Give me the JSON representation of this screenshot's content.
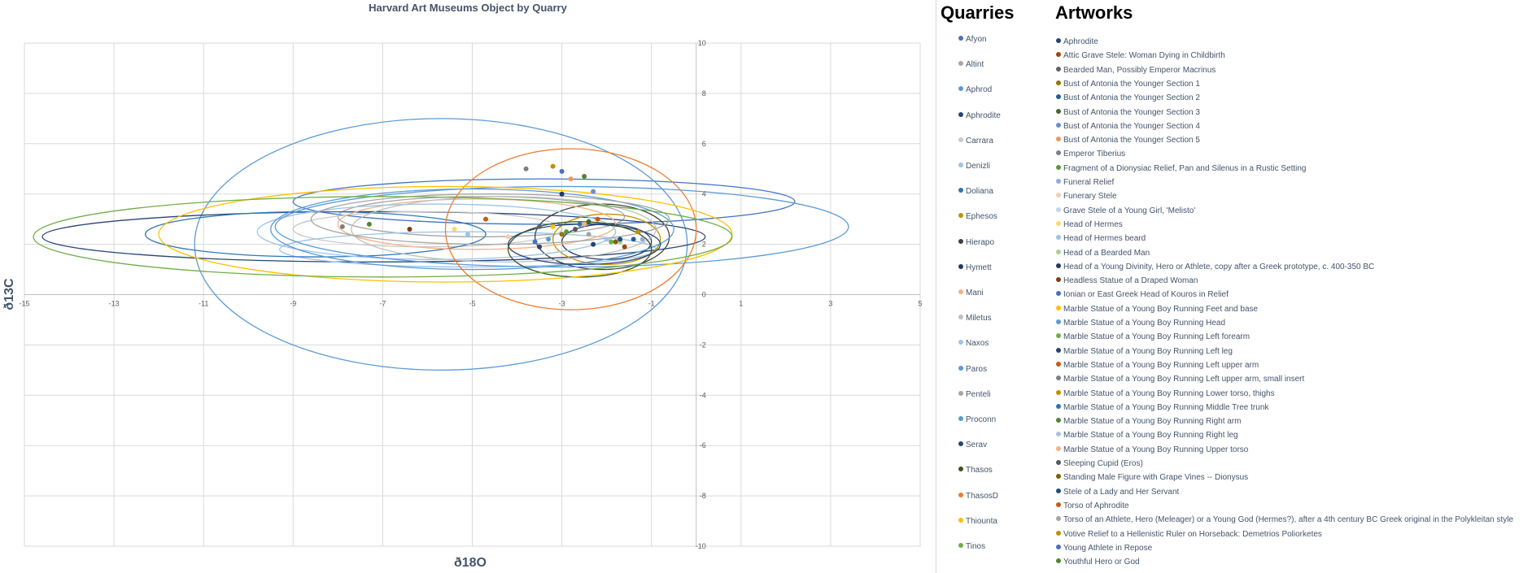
{
  "chart_data": {
    "type": "scatter",
    "title": "Harvard Art Museums Object by Quarry",
    "xlabel": "ð18O",
    "ylabel": "ð13C",
    "xlim": [
      -15,
      5
    ],
    "ylim": [
      -10,
      10
    ],
    "x_ticks": [
      -15,
      -13,
      -11,
      -9,
      -7,
      -5,
      -3,
      -1,
      1,
      3,
      5
    ],
    "y_ticks": [
      -10,
      -8,
      -6,
      -4,
      -2,
      0,
      2,
      4,
      6,
      8,
      10
    ],
    "grid": true,
    "quarries_heading": "Quarries",
    "artworks_heading": "Artworks",
    "quarries": [
      {
        "name": "Afyon",
        "color": "#4472c4",
        "ellipse": {
          "cx": -3.4,
          "cy": 3.7,
          "rx": 5.6,
          "ry": 0.9
        }
      },
      {
        "name": "Altint",
        "color": "#a5a5a5",
        "ellipse": {
          "cx": -4.8,
          "cy": 3.1,
          "rx": 3.2,
          "ry": 0.8
        }
      },
      {
        "name": "Aphrod",
        "color": "#5b9bd5",
        "ellipse": {
          "cx": -5.7,
          "cy": 2.0,
          "rx": 5.5,
          "ry": 5.0
        }
      },
      {
        "name": "Aphrodite",
        "color": "#264478",
        "ellipse": {
          "cx": -7.2,
          "cy": 2.3,
          "rx": 7.4,
          "ry": 1.0
        }
      },
      {
        "name": "Carrara",
        "color": "#c9c9c9",
        "ellipse": {
          "cx": -6.0,
          "cy": 2.6,
          "rx": 3.0,
          "ry": 0.7
        }
      },
      {
        "name": "Denizli",
        "color": "#9dc3e6",
        "ellipse": {
          "cx": -5.1,
          "cy": 1.8,
          "rx": 4.2,
          "ry": 0.7
        }
      },
      {
        "name": "Doliana",
        "color": "#2e75b6",
        "ellipse": {
          "cx": -8.5,
          "cy": 2.4,
          "rx": 3.8,
          "ry": 0.9
        }
      },
      {
        "name": "Ephesos",
        "color": "#bf9000",
        "ellipse": {
          "cx": -2.0,
          "cy": 2.2,
          "rx": 1.2,
          "ry": 1.0
        }
      },
      {
        "name": "Hierapo",
        "color": "#404040",
        "ellipse": {
          "cx": -2.1,
          "cy": 2.3,
          "rx": 1.5,
          "ry": 1.3
        }
      },
      {
        "name": "Hymett",
        "color": "#1f3864",
        "ellipse": {
          "cx": -2.0,
          "cy": 2.1,
          "rx": 1.0,
          "ry": 0.7
        }
      },
      {
        "name": "Mani",
        "color": "#f4b183",
        "ellipse": {
          "cx": -4.9,
          "cy": 2.8,
          "rx": 3.1,
          "ry": 1.0
        }
      },
      {
        "name": "Miletus",
        "color": "#bfbfbf",
        "ellipse": {
          "cx": -4.3,
          "cy": 2.6,
          "rx": 3.4,
          "ry": 1.3
        }
      },
      {
        "name": "Naxos",
        "color": "#9dc3e6",
        "ellipse": {
          "cx": -5.8,
          "cy": 2.5,
          "rx": 4.0,
          "ry": 1.1
        }
      },
      {
        "name": "Paros",
        "color": "#5b9bd5",
        "ellipse": {
          "cx": -5.0,
          "cy": 2.6,
          "rx": 4.5,
          "ry": 1.6
        }
      },
      {
        "name": "Penteli",
        "color": "#a5a5a5",
        "ellipse": {
          "cx": -4.6,
          "cy": 3.0,
          "rx": 4.0,
          "ry": 1.0
        }
      },
      {
        "name": "Proconn",
        "color": "#5b9bd5",
        "ellipse": {
          "cx": -3.0,
          "cy": 2.7,
          "rx": 6.4,
          "ry": 1.6
        }
      },
      {
        "name": "Serav",
        "color": "#264478",
        "ellipse": {
          "cx": -2.5,
          "cy": 2.0,
          "rx": 1.7,
          "ry": 0.8
        }
      },
      {
        "name": "Thasos",
        "color": "#375623",
        "ellipse": {
          "cx": -2.6,
          "cy": 1.8,
          "rx": 1.6,
          "ry": 1.1
        }
      },
      {
        "name": "ThasosD",
        "color": "#ed7d31",
        "ellipse": {
          "cx": -2.8,
          "cy": 2.6,
          "rx": 2.8,
          "ry": 3.2
        }
      },
      {
        "name": "Thiounta",
        "color": "#ffc000",
        "ellipse": {
          "cx": -5.6,
          "cy": 2.4,
          "rx": 6.4,
          "ry": 1.9
        }
      },
      {
        "name": "Tinos",
        "color": "#70ad47",
        "ellipse": {
          "cx": -7.0,
          "cy": 2.3,
          "rx": 7.8,
          "ry": 1.6
        }
      }
    ],
    "artworks": [
      {
        "name": "Aphrodite",
        "color": "#264478",
        "x": -2.3,
        "y": 2.0
      },
      {
        "name": "Attic Grave Stele: Woman Dying in Childbirth",
        "color": "#9e480e",
        "x": -1.6,
        "y": 1.9
      },
      {
        "name": "Bearded Man, Possibly Emperor Macrinus",
        "color": "#636363",
        "x": -3.5,
        "y": 2.7
      },
      {
        "name": "Bust of Antonia the Younger Section 1",
        "color": "#997300",
        "x": -3.0,
        "y": 2.4
      },
      {
        "name": "Bust of Antonia the Younger Section 2",
        "color": "#255e91",
        "x": -1.4,
        "y": 2.2
      },
      {
        "name": "Bust of Antonia the Younger Section 3",
        "color": "#43682b",
        "x": -2.4,
        "y": 2.9
      },
      {
        "name": "Bust of Antonia the Younger Section 4",
        "color": "#698ed0",
        "x": -2.3,
        "y": 4.1
      },
      {
        "name": "Bust of Antonia the Younger Section 5",
        "color": "#f1975a",
        "x": -2.8,
        "y": 4.6
      },
      {
        "name": "Emperor Tiberius",
        "color": "#7f7f7f",
        "x": -3.8,
        "y": 5.0
      },
      {
        "name": "Fragment of a Dionysiac Relief, Pan and Silenus in a Rustic Setting",
        "color": "#5b9a3a",
        "x": -2.9,
        "y": 2.5
      },
      {
        "name": "Funeral Relief",
        "color": "#8faadc",
        "x": -1.2,
        "y": 2.2
      },
      {
        "name": "Funerary Stele",
        "color": "#f8cbad",
        "x": -4.2,
        "y": 2.3
      },
      {
        "name": "Grave Stele of a Young Girl, 'Melisto'",
        "color": "#bdd7ee",
        "x": -2.0,
        "y": 2.2
      },
      {
        "name": "Head of Hermes",
        "color": "#ffd966",
        "x": -5.4,
        "y": 2.6
      },
      {
        "name": "Head of Hermes beard",
        "color": "#9dc3e6",
        "x": -5.1,
        "y": 2.4
      },
      {
        "name": "Head of a Bearded Man",
        "color": "#a9d18e",
        "x": -1.7,
        "y": 2.1
      },
      {
        "name": "Head of a Young Divinity, Hero or Athlete, copy after a Greek prototype, c. 400-350 BC",
        "color": "#1f3864",
        "x": -3.0,
        "y": 4.0
      },
      {
        "name": "Headless Statue of a Draped Woman",
        "color": "#843c0c",
        "x": -6.4,
        "y": 2.6
      },
      {
        "name": "Ionian or East Greek Head of Kouros in Relief",
        "color": "#4472c4",
        "x": -3.6,
        "y": 2.1
      },
      {
        "name": "Marble Statue of a Young Boy Running Feet and base",
        "color": "#ffc000",
        "x": -3.2,
        "y": 2.7
      },
      {
        "name": "Marble Statue of a Young Boy Running Head",
        "color": "#5b9bd5",
        "x": -3.3,
        "y": 2.2
      },
      {
        "name": "Marble Statue of a Young Boy Running Left forearm",
        "color": "#70ad47",
        "x": -1.9,
        "y": 2.1
      },
      {
        "name": "Marble Statue of a Young Boy Running Left leg",
        "color": "#264478",
        "x": -3.5,
        "y": 1.9
      },
      {
        "name": "Marble Statue of a Young Boy Running Left upper arm",
        "color": "#c55a11",
        "x": -2.2,
        "y": 3.0
      },
      {
        "name": "Marble Statue of a Young Boy Running Left upper arm, small insert",
        "color": "#7f7f7f",
        "x": -7.9,
        "y": 2.7
      },
      {
        "name": "Marble Statue of a Young Boy Running Lower torso, thighs",
        "color": "#bf9000",
        "x": -3.2,
        "y": 5.1
      },
      {
        "name": "Marble Statue of a Young Boy Running Middle Tree trunk",
        "color": "#2e75b6",
        "x": -2.6,
        "y": 2.8
      },
      {
        "name": "Marble Statue of a Young Boy Running Right arm",
        "color": "#548235",
        "x": -7.3,
        "y": 2.8
      },
      {
        "name": "Marble Statue of a Young Boy Running Right leg",
        "color": "#a9c0e6",
        "x": -2.0,
        "y": 2.2
      },
      {
        "name": "Marble Statue of a Young Boy Running Upper torso",
        "color": "#f4b183",
        "x": -2.5,
        "y": 2.8
      },
      {
        "name": "Sleeping Cupid (Eros)",
        "color": "#595959",
        "x": -2.7,
        "y": 2.6
      },
      {
        "name": "Standing Male Figure with Grape Vines -- Dionysus",
        "color": "#806000",
        "x": -1.8,
        "y": 2.1
      },
      {
        "name": "Stele of a Lady and Her Servant",
        "color": "#1f4e79",
        "x": -1.7,
        "y": 2.2
      },
      {
        "name": "Torso of Aphrodite",
        "color": "#c55a11",
        "x": -4.7,
        "y": 3.0
      },
      {
        "name": "Torso of an Athlete, Hero (Meleager) or a Young God (Hermes?), after a 4th century BC Greek original in the Polykleitan style",
        "color": "#a5a5a5",
        "x": -2.4,
        "y": 2.4
      },
      {
        "name": "Votive Relief to a Hellenistic Ruler on Horseback: Demetrios Poliorketes",
        "color": "#bf9000",
        "x": -1.3,
        "y": 2.5
      },
      {
        "name": "Young Athlete in Repose",
        "color": "#4472c4",
        "x": -3.0,
        "y": 4.9
      },
      {
        "name": "Youthful Hero or God",
        "color": "#548235",
        "x": -2.5,
        "y": 4.7
      }
    ]
  }
}
